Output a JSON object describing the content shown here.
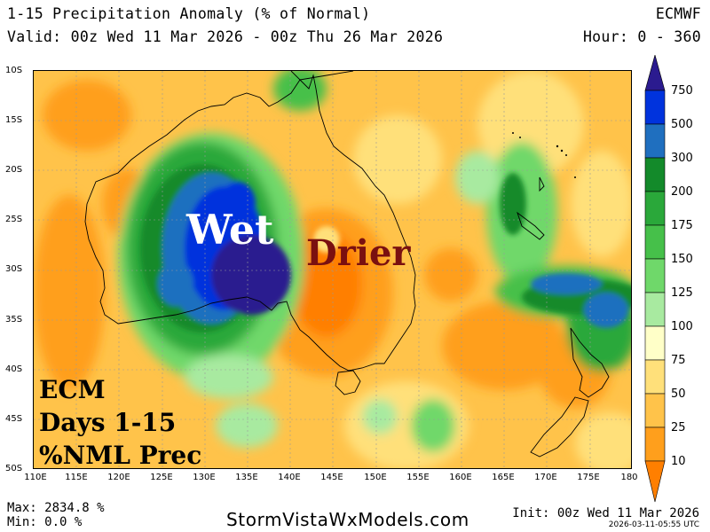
{
  "header": {
    "title": "1-15 Precipitation Anomaly (% of Normal)",
    "model": "ECMWF",
    "valid": "Valid: 00z Wed 11 Mar 2026 - 00z Thu 26 Mar 2026",
    "hour": "Hour: 0 - 360"
  },
  "map": {
    "lat_labels": [
      "10S",
      "15S",
      "20S",
      "25S",
      "30S",
      "35S",
      "40S",
      "45S",
      "50S"
    ],
    "lon_labels": [
      "110E",
      "115E",
      "120E",
      "125E",
      "130E",
      "135E",
      "140E",
      "145E",
      "150E",
      "155E",
      "160E",
      "165E",
      "170E",
      "175E",
      "180"
    ],
    "lat_range": [
      -50,
      -10
    ],
    "lon_range": [
      110,
      180
    ],
    "annotations": {
      "wet": "Wet",
      "drier": "Drier",
      "label_line1": "ECM",
      "label_line2": "Days 1-15",
      "label_line3": "%NML Prec"
    }
  },
  "legend": {
    "levels": [
      "750",
      "500",
      "300",
      "200",
      "175",
      "150",
      "125",
      "100",
      "75",
      "50",
      "25",
      "10"
    ],
    "colors": [
      "#2b1b8f",
      "#0033dd",
      "#1f6fbf",
      "#138a2a",
      "#2aa83a",
      "#46c04a",
      "#6fd86a",
      "#a8eaa0",
      "#ffffc8",
      "#ffe07a",
      "#ffc34a",
      "#ff9f1c",
      "#ff7f00"
    ]
  },
  "footer": {
    "max": "Max: 2834.8 %",
    "min": "Min: 0.0 %",
    "site": "StormVistaWxModels.com",
    "init": "Init: 00z Wed 11 Mar 2026",
    "timestamp": "2026-03-11-05:55 UTC"
  }
}
